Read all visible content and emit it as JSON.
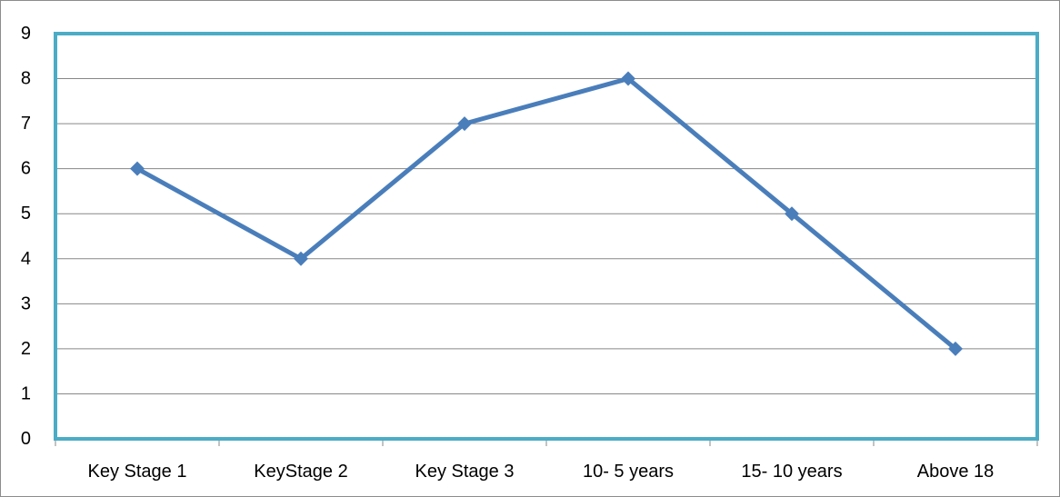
{
  "chart_data": {
    "type": "line",
    "title": "",
    "xlabel": "",
    "ylabel": "",
    "categories": [
      "Key Stage 1",
      "KeyStage 2",
      "Key Stage 3",
      "10- 5 years",
      "15- 10 years",
      "Above 18"
    ],
    "series": [
      {
        "values": [
          6,
          4,
          7,
          8,
          5,
          2
        ]
      }
    ],
    "ylim": [
      0,
      9
    ],
    "yticks": [
      0,
      1,
      2,
      3,
      4,
      5,
      6,
      7,
      8,
      9
    ],
    "grid": true,
    "legend": "none",
    "colors": {
      "line": "#4a7ebb",
      "plot_border": "#4bacc6",
      "gridline": "#878787",
      "outer_border": "#8c8c8c",
      "axis": "#878787"
    }
  }
}
